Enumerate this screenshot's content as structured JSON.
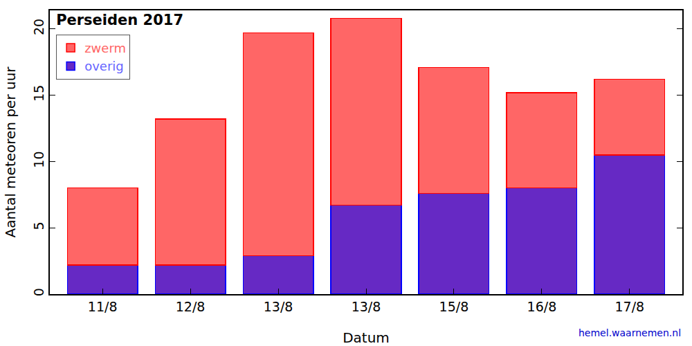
{
  "chart_data": {
    "type": "bar",
    "title": "Perseiden 2017",
    "x_label": "Datum",
    "y_label": "Aantal meteoren per uur",
    "categories": [
      "11/8",
      "12/8",
      "13/8",
      "13/8",
      "15/8",
      "16/8",
      "17/8"
    ],
    "series": [
      {
        "name": "overig",
        "color": "#6629c4",
        "values": [
          2.2,
          2.2,
          2.9,
          6.7,
          7.6,
          8.0,
          10.5
        ]
      },
      {
        "name": "zwerm",
        "color": "#ff6666",
        "values": [
          5.8,
          11.0,
          16.8,
          14.1,
          9.5,
          7.2,
          5.7
        ]
      }
    ],
    "stacked": true,
    "ylim": [
      0,
      21.4
    ],
    "yticks": [
      0,
      5,
      10,
      15,
      20
    ],
    "grid": false,
    "legend": "upper left",
    "annotations": [
      {
        "text": "hemel.waarnemen.nl"
      }
    ]
  }
}
